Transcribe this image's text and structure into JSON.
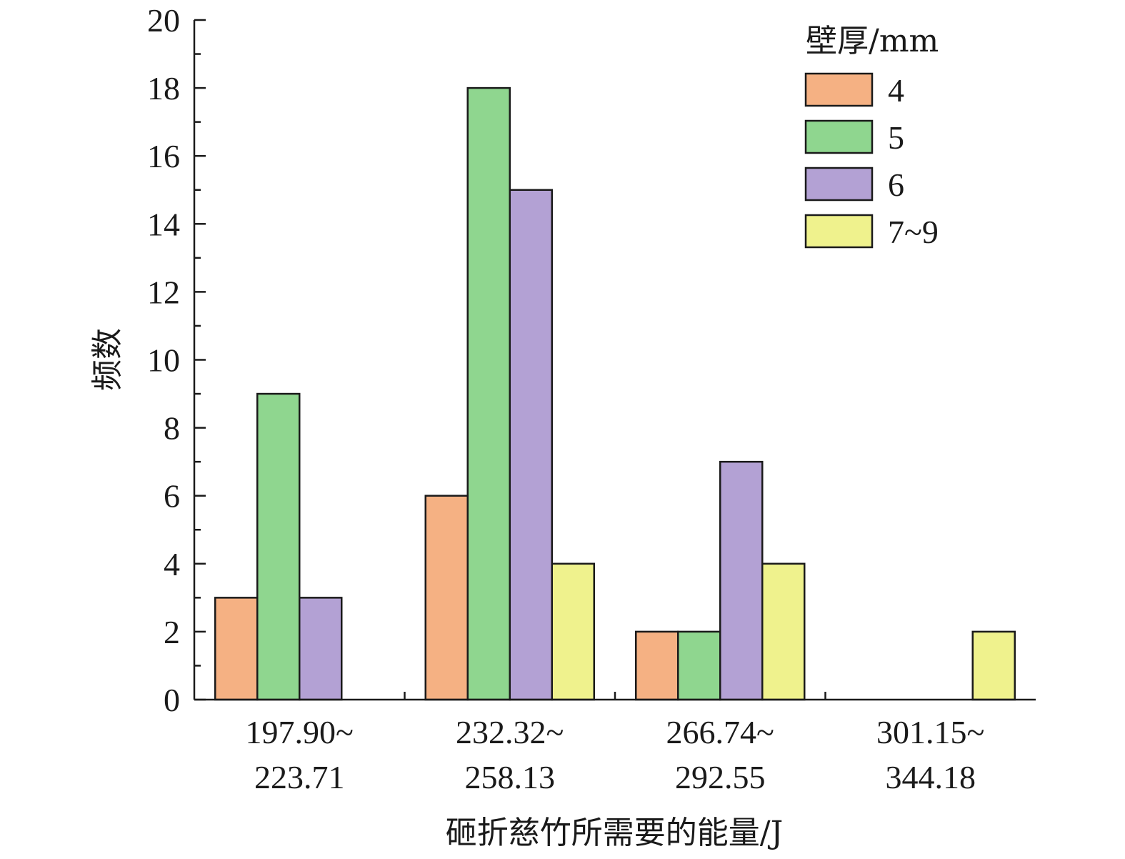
{
  "chart_data": {
    "type": "bar",
    "title": "",
    "xlabel": "砸折慈竹所需要的能量/J",
    "ylabel": "频数",
    "ylim": [
      0,
      20
    ],
    "yticks": [
      "0",
      "2",
      "4",
      "6",
      "8",
      "10",
      "12",
      "14",
      "16",
      "18",
      "20"
    ],
    "categories": [
      [
        "197.90~",
        "223.71"
      ],
      [
        "232.32~",
        "258.13"
      ],
      [
        "266.74~",
        "292.55"
      ],
      [
        "301.15~",
        "344.18"
      ]
    ],
    "legend_title": "壁厚/mm",
    "legend_position": "top-right",
    "grid": false,
    "series": [
      {
        "name": "4",
        "color": "#F5B183",
        "values": [
          3,
          6,
          2,
          0
        ]
      },
      {
        "name": "5",
        "color": "#8FD68F",
        "values": [
          9,
          18,
          2,
          0
        ]
      },
      {
        "name": "6",
        "color": "#B3A1D4",
        "values": [
          3,
          15,
          7,
          0
        ]
      },
      {
        "name": "7~9",
        "color": "#EFF28D",
        "values": [
          0,
          4,
          4,
          2
        ]
      }
    ]
  }
}
